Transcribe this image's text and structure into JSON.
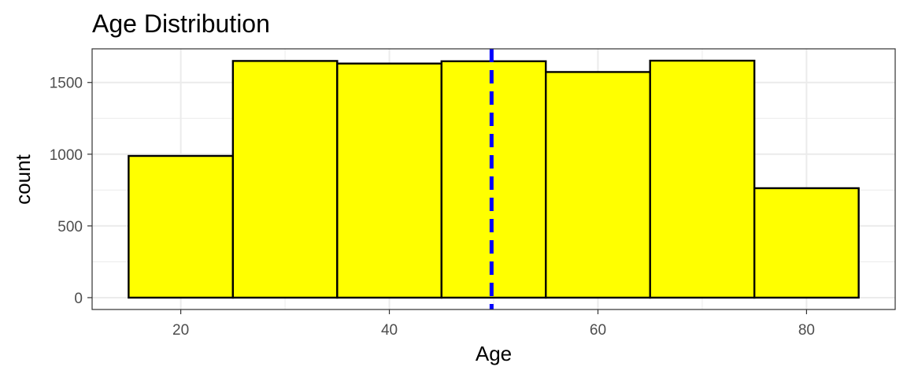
{
  "chart_data": {
    "type": "bar",
    "title": "Age Distribution",
    "xlabel": "Age",
    "ylabel": "count",
    "bins": [
      {
        "start": 15,
        "end": 25,
        "count": 988
      },
      {
        "start": 25,
        "end": 35,
        "count": 1650
      },
      {
        "start": 35,
        "end": 45,
        "count": 1632
      },
      {
        "start": 45,
        "end": 55,
        "count": 1648
      },
      {
        "start": 55,
        "end": 65,
        "count": 1573
      },
      {
        "start": 65,
        "end": 75,
        "count": 1652
      },
      {
        "start": 75,
        "end": 85,
        "count": 763
      }
    ],
    "xlim": [
      11.5,
      88.5
    ],
    "ylim": [
      -82.6,
      1734.6
    ],
    "x_ticks": [
      20,
      40,
      60,
      80
    ],
    "x_minor_ticks": [
      30,
      50,
      70
    ],
    "y_ticks": [
      0,
      500,
      1000,
      1500
    ],
    "y_minor_ticks": [
      250,
      750,
      1250
    ],
    "reference_line": {
      "x": 49.8,
      "style": "dashed",
      "color": "#0000ff"
    },
    "grid": true,
    "legend": "none",
    "colors": {
      "bar_fill": "#ffff00",
      "bar_outline": "#000000",
      "grid": "#ebebeb",
      "panel_border": "#333333"
    }
  }
}
